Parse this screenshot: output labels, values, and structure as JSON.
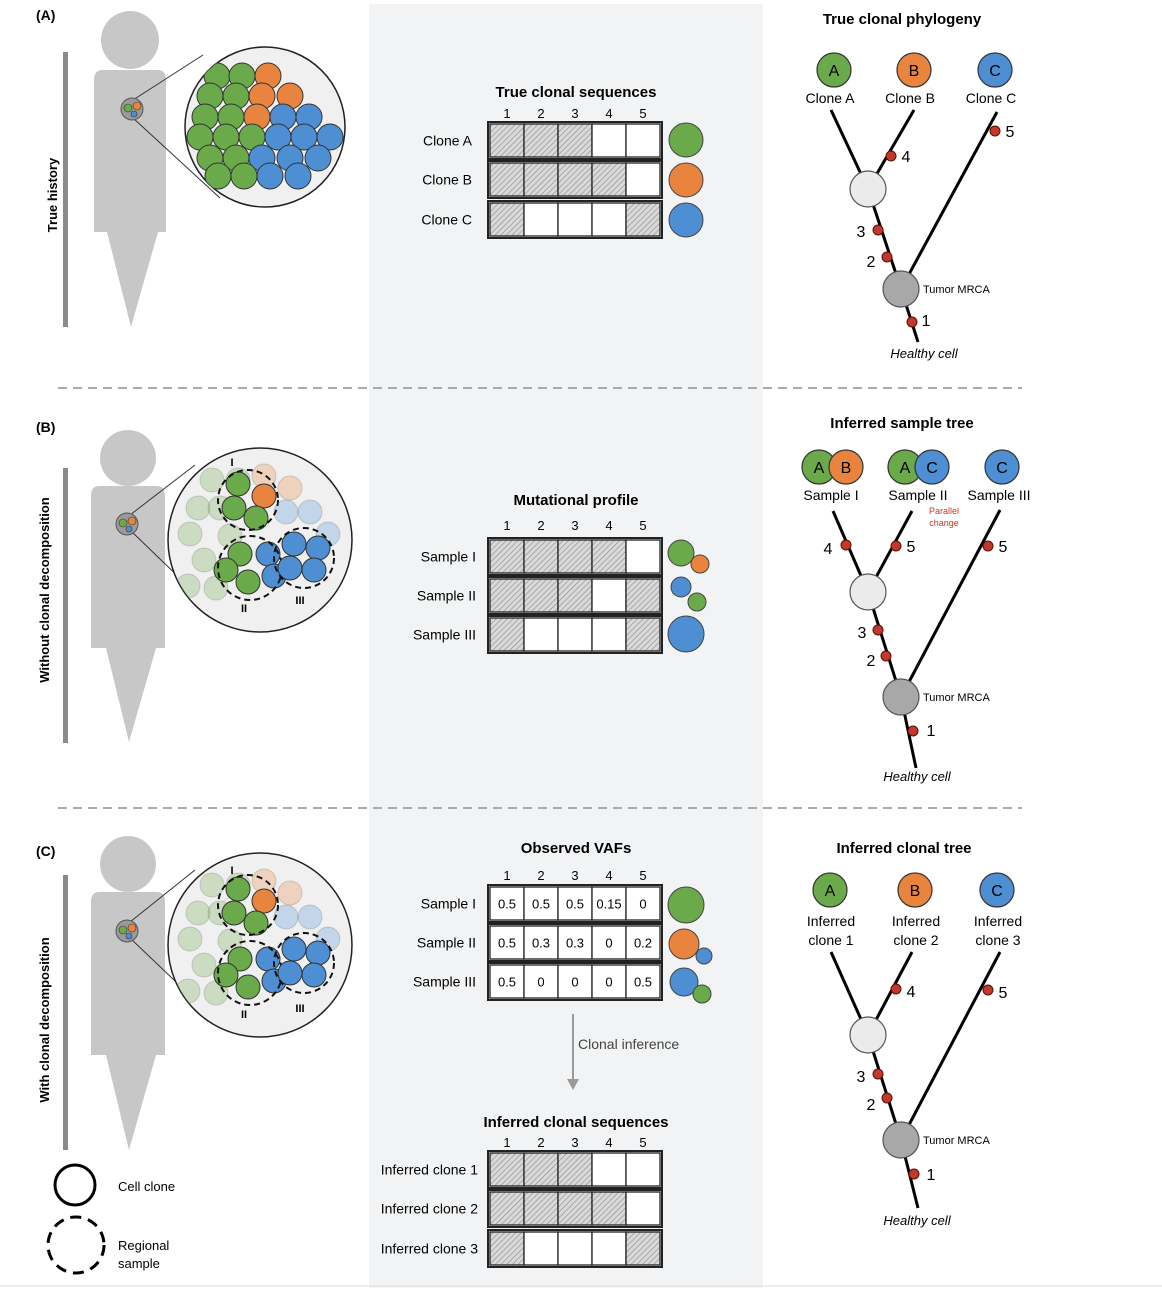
{
  "colors": {
    "green": "#6aaa4a",
    "orange": "#e8843d",
    "blue": "#4e8fd3",
    "mutation_red": "#c0392b",
    "silhouette": "#c7c7c7",
    "center_panel": "#f2f3f4",
    "parallel_text": "#c0392b"
  },
  "icons": [
    "human-silhouette-icon",
    "tumor-zoom-icon",
    "cell-clone-circle-icon",
    "regional-sample-dashed-circle-icon"
  ],
  "site_labels": [
    "1",
    "2",
    "3",
    "4",
    "5"
  ],
  "panel_a": {
    "letter": "(A)",
    "side_label": "True history",
    "table_title": "True clonal sequences",
    "rows": [
      {
        "label": "Clone A",
        "cells": [
          1,
          1,
          1,
          0,
          0
        ]
      },
      {
        "label": "Clone B",
        "cells": [
          1,
          1,
          1,
          1,
          0
        ]
      },
      {
        "label": "Clone C",
        "cells": [
          1,
          0,
          0,
          0,
          1
        ]
      }
    ],
    "tree_title": "True clonal phylogeny",
    "leaves": [
      {
        "letter": "A",
        "label": "Clone A"
      },
      {
        "letter": "B",
        "label": "Clone B"
      },
      {
        "letter": "C",
        "label": "Clone C"
      }
    ],
    "mutations": [
      "1",
      "2",
      "3",
      "4",
      "5"
    ],
    "root_label": "Tumor MRCA",
    "healthy_label": "Healthy cell"
  },
  "panel_b": {
    "letter": "(B)",
    "side_label": "Without clonal decomposition",
    "table_title": "Mutational profile",
    "rows": [
      {
        "label": "Sample I",
        "cells": [
          1,
          1,
          1,
          1,
          0
        ]
      },
      {
        "label": "Sample II",
        "cells": [
          1,
          1,
          1,
          0,
          1
        ]
      },
      {
        "label": "Sample III",
        "cells": [
          1,
          0,
          0,
          0,
          1
        ]
      }
    ],
    "region_labels": [
      "I",
      "II",
      "III"
    ],
    "tree_title": "Inferred sample tree",
    "leaves": [
      {
        "letters": [
          "A",
          "B"
        ],
        "label": "Sample I"
      },
      {
        "letters": [
          "A",
          "C"
        ],
        "label": "Sample II"
      },
      {
        "letters": [
          "C"
        ],
        "label": "Sample III"
      }
    ],
    "parallel_note": [
      "Parallel",
      "change"
    ],
    "mutations": [
      "1",
      "2",
      "3",
      "4",
      "5",
      "5"
    ],
    "root_label": "Tumor MRCA",
    "healthy_label": "Healthy cell"
  },
  "panel_c": {
    "letter": "(C)",
    "side_label": "With clonal decomposition",
    "vaf_title": "Observed VAFs",
    "vaf_rows": [
      {
        "label": "Sample I",
        "values": [
          "0.5",
          "0.5",
          "0.5",
          "0.15",
          "0"
        ]
      },
      {
        "label": "Sample II",
        "values": [
          "0.5",
          "0.3",
          "0.3",
          "0",
          "0.2"
        ]
      },
      {
        "label": "Sample III",
        "values": [
          "0.5",
          "0",
          "0",
          "0",
          "0.5"
        ]
      }
    ],
    "region_labels": [
      "I",
      "II",
      "III"
    ],
    "arrow_label": "Clonal inference",
    "inferred_title": "Inferred clonal sequences",
    "inferred_rows": [
      {
        "label": "Inferred clone 1",
        "cells": [
          1,
          1,
          1,
          0,
          0
        ]
      },
      {
        "label": "Inferred clone 2",
        "cells": [
          1,
          1,
          1,
          1,
          0
        ]
      },
      {
        "label": "Inferred clone 3",
        "cells": [
          1,
          0,
          0,
          0,
          1
        ]
      }
    ],
    "tree_title": "Inferred clonal tree",
    "leaves": [
      {
        "letter": "A",
        "label": [
          "Inferred",
          "clone 1"
        ]
      },
      {
        "letter": "B",
        "label": [
          "Inferred",
          "clone 2"
        ]
      },
      {
        "letter": "C",
        "label": [
          "Inferred",
          "clone 3"
        ]
      }
    ],
    "mutations": [
      "1",
      "2",
      "3",
      "4",
      "5"
    ],
    "root_label": "Tumor MRCA",
    "healthy_label": "Healthy cell"
  },
  "legend": {
    "clone_label": "Cell clone",
    "sample_label": [
      "Regional",
      "sample"
    ]
  }
}
